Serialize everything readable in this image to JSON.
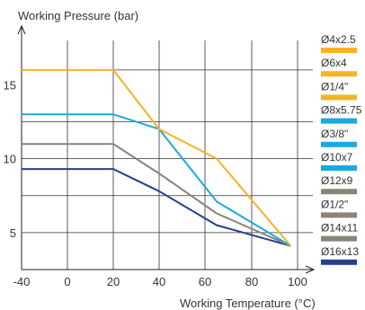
{
  "chart_data": {
    "type": "line",
    "ylabel": "Working Pressure (bar)",
    "xlabel": "Working Temperature (°C)",
    "xlim": [
      -40,
      100
    ],
    "ylim": [
      2.5,
      18
    ],
    "x_ticks": [
      -40,
      0,
      20,
      40,
      60,
      80,
      100
    ],
    "x_tick_labels": [
      "-40",
      "0",
      "20",
      "40",
      "60",
      "80",
      "100"
    ],
    "y_ticks": [
      5,
      10,
      15
    ],
    "y_tick_labels": [
      "5",
      "10",
      "15"
    ],
    "grid": true,
    "legend_position": "right",
    "series": [
      {
        "name": "Ø16x13",
        "color": "#243f8c",
        "x": [
          -40,
          20,
          40,
          65,
          97
        ],
        "y": [
          9.3,
          9.3,
          7.8,
          5.5,
          4.1
        ]
      },
      {
        "name": "Ø12x9",
        "color": "#8a8378",
        "x": [
          -40,
          20,
          40,
          65,
          97
        ],
        "y": [
          11,
          11,
          9,
          6.3,
          4.1
        ]
      },
      {
        "name": "Ø8x5.75",
        "color": "#1ba9df",
        "x": [
          -40,
          20,
          40,
          65,
          97
        ],
        "y": [
          13,
          13,
          12,
          7.1,
          4.1
        ]
      },
      {
        "name": "Ø4x2.5",
        "color": "#f6b323",
        "x": [
          -40,
          20,
          40,
          65,
          97
        ],
        "y": [
          16,
          16,
          12,
          10,
          4.1
        ]
      }
    ],
    "legend": [
      {
        "label": "Ø4x2.5",
        "color": "#f6b323"
      },
      {
        "label": "Ø6x4",
        "color": "#f6b323"
      },
      {
        "label": "Ø1/4\"",
        "color": "#f6b323"
      },
      {
        "label": "Ø8x5.75",
        "color": "#1ba9df"
      },
      {
        "label": "Ø3/8\"",
        "color": "#1ba9df"
      },
      {
        "label": "Ø10x7",
        "color": "#1ba9df"
      },
      {
        "label": "Ø12x9",
        "color": "#8a8378"
      },
      {
        "label": "Ø1/2\"",
        "color": "#8a8378"
      },
      {
        "label": "Ø14x11",
        "color": "#8a8378"
      },
      {
        "label": "Ø16x13",
        "color": "#243f8c"
      }
    ]
  }
}
